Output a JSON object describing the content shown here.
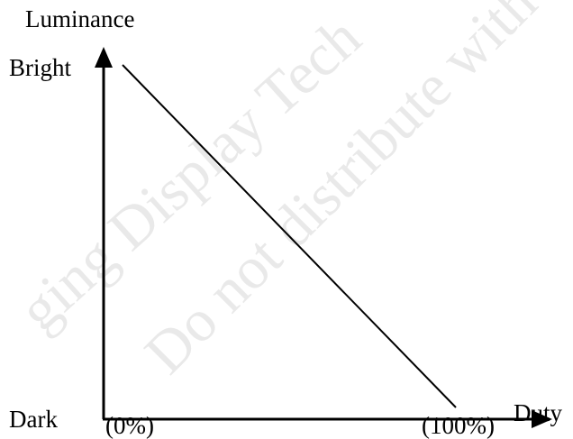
{
  "chart_data": {
    "type": "line",
    "ylabel": "Luminance",
    "xlabel": "Duty",
    "y_axis_labels": {
      "high": "Bright",
      "low": "Dark"
    },
    "x_axis_labels": {
      "start": "(0%)",
      "end": "(100%)"
    },
    "series": [
      {
        "x": [
          "0%",
          "100%"
        ],
        "y": [
          "Bright",
          "Dark"
        ]
      }
    ],
    "grid": false
  },
  "watermarks": [
    "ging Display Tech",
    "Do not distribute with"
  ],
  "colors": {
    "ink": "#000000",
    "watermark": "#e9e9e9",
    "background": "#ffffff"
  }
}
